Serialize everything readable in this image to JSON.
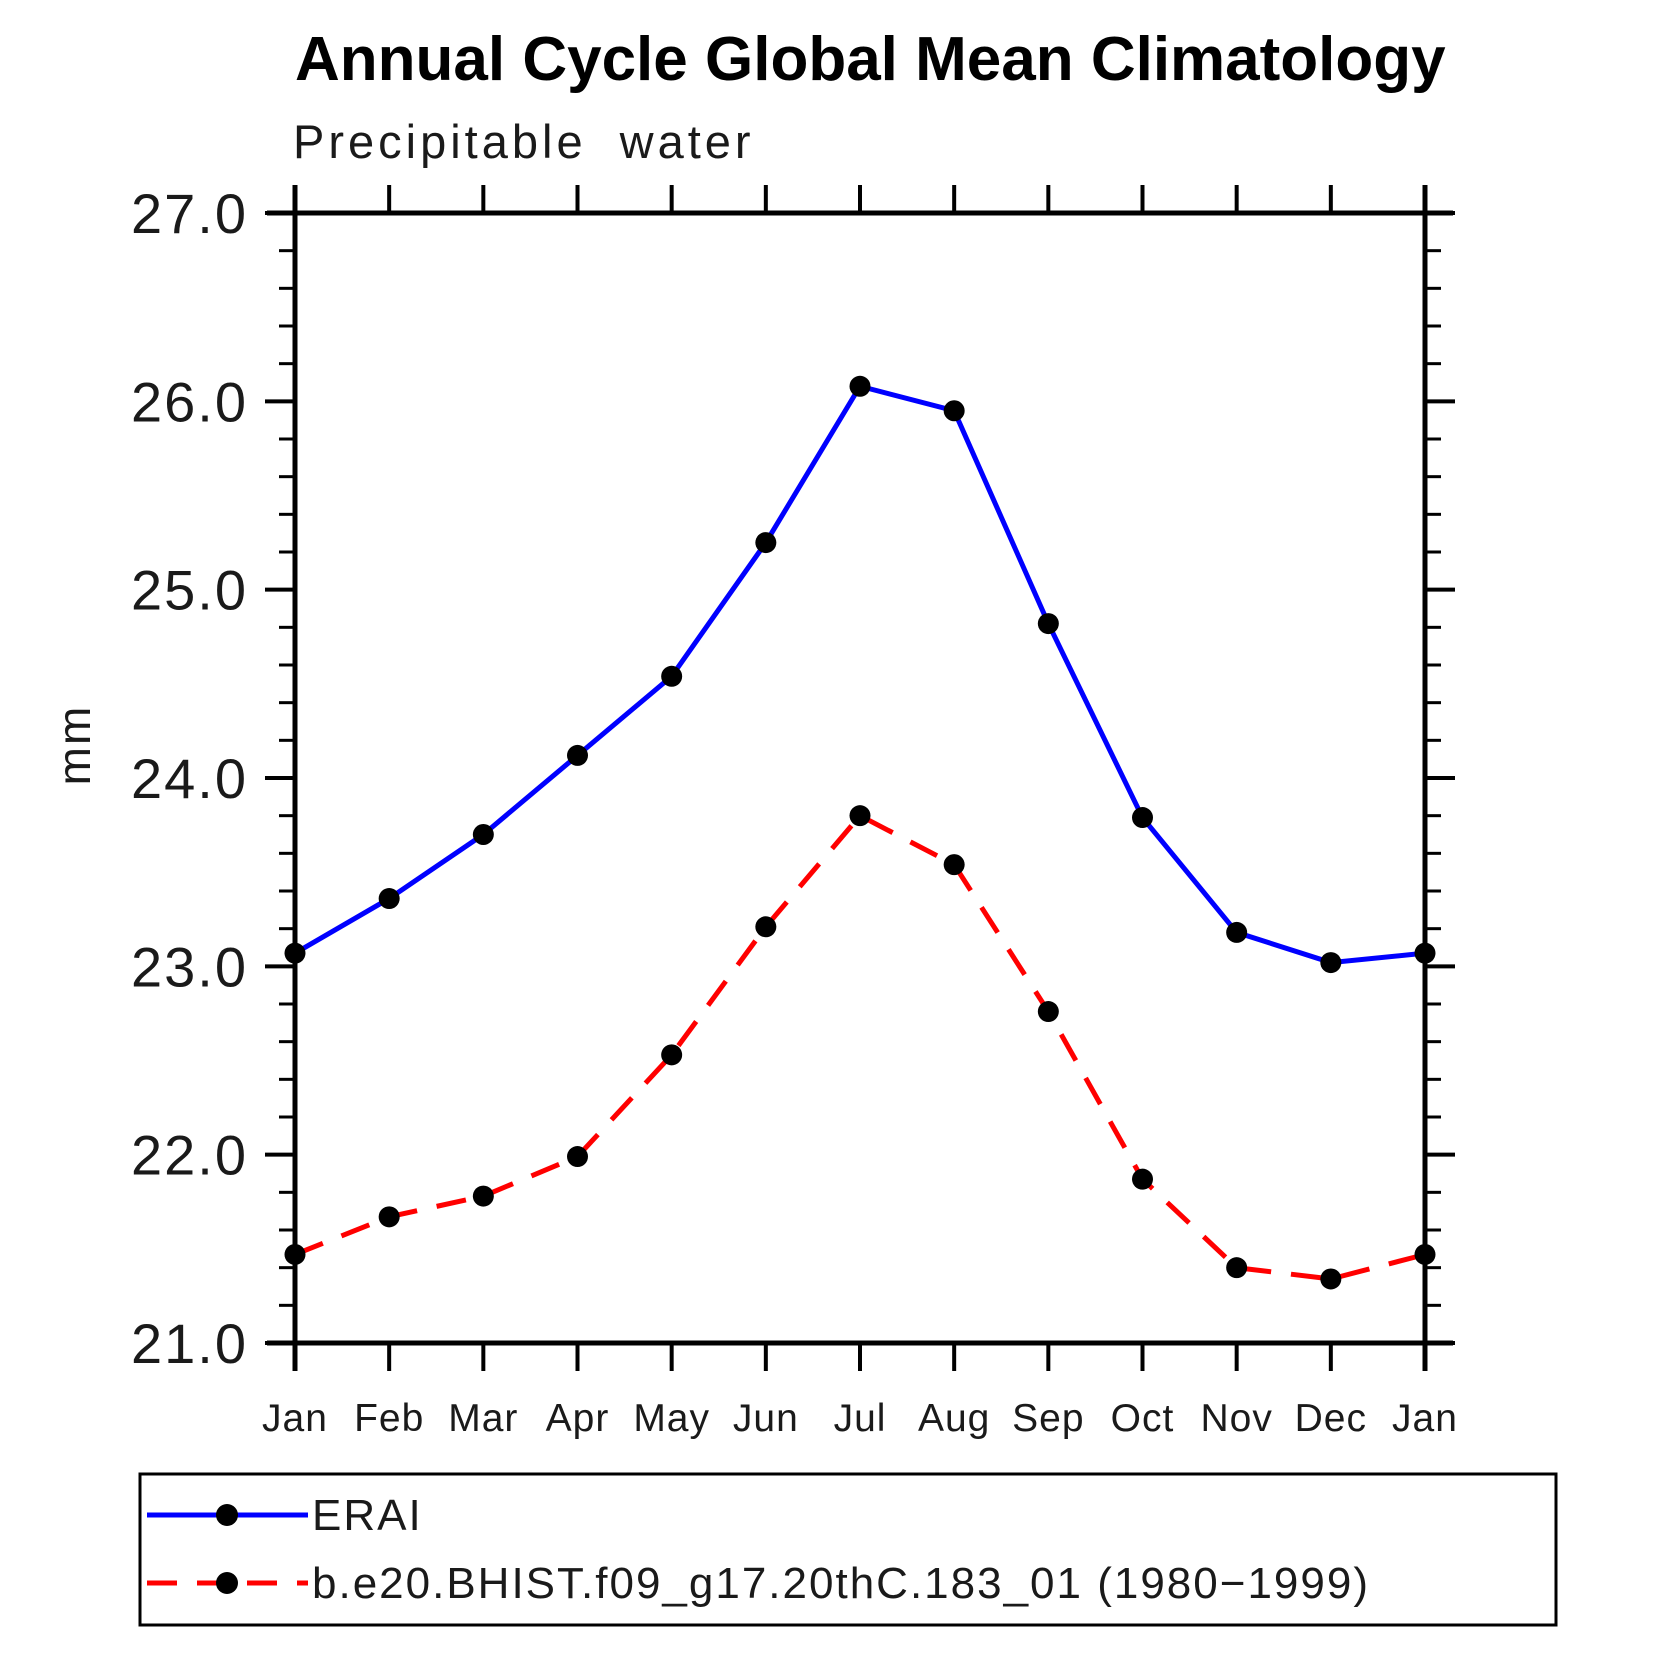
{
  "chart_data": {
    "type": "line",
    "title": "Annual Cycle Global Mean Climatology",
    "subtitle": "Precipitable water",
    "ylabel": "mm",
    "ylim": [
      21.0,
      27.0
    ],
    "y_major_step": 1.0,
    "y_minor_step": 0.2,
    "y_tick_labels": [
      "21.0",
      "22.0",
      "23.0",
      "24.0",
      "25.0",
      "26.0",
      "27.0"
    ],
    "x_categories": [
      "Jan",
      "Feb",
      "Mar",
      "Apr",
      "May",
      "Jun",
      "Jul",
      "Aug",
      "Sep",
      "Oct",
      "Nov",
      "Dec",
      "Jan"
    ],
    "grid": false,
    "legend_position": "bottom",
    "marker": "filled-circle",
    "marker_color": "#000000",
    "axis_color": "#000000",
    "series": [
      {
        "name": "ERAI",
        "color": "#0000ff",
        "style": "solid",
        "values": [
          23.07,
          23.36,
          23.7,
          24.12,
          24.54,
          25.25,
          26.08,
          25.95,
          24.82,
          23.79,
          23.18,
          23.02,
          23.07
        ]
      },
      {
        "name": "b.e20.BHIST.f09_g17.20thC.183_01 (1980−1999)",
        "color": "#ff0000",
        "style": "dashed",
        "values": [
          21.47,
          21.67,
          21.78,
          21.99,
          22.53,
          23.21,
          23.8,
          23.54,
          22.76,
          21.87,
          21.4,
          21.34,
          21.47
        ]
      }
    ]
  }
}
